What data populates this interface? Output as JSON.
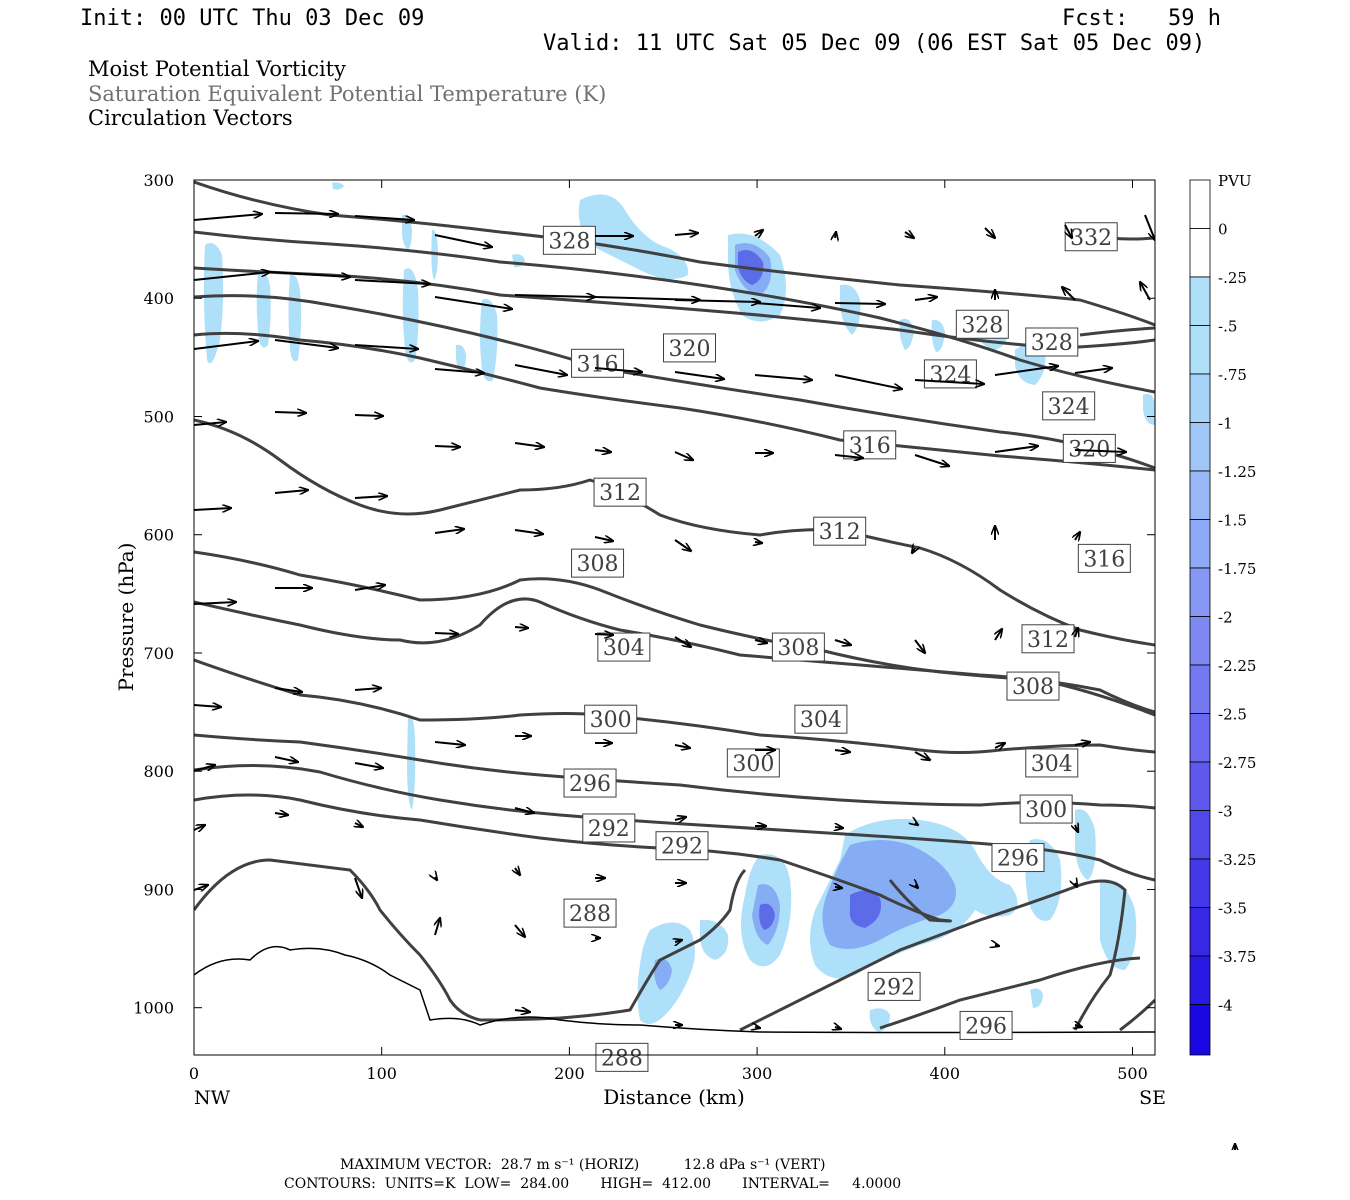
{
  "header": {
    "init": "Init: 00 UTC Thu 03 Dec 09",
    "fcst": "Fcst:   59 h",
    "valid": "Valid: 11 UTC Sat 05 Dec 09 (06 EST Sat 05 Dec 09)"
  },
  "legend_titles": {
    "field1": "Moist Potential Vorticity",
    "field2": "Saturation Equivalent Potential Temperature (K)",
    "field3": "Circulation Vectors"
  },
  "colors": {
    "field2_title": "#707070",
    "contour": "#404040",
    "shade_light": "#aee0fa",
    "shade_mid": "#86acf4",
    "shade_dark": "#5c6ce8"
  },
  "chart_data": {
    "type": "contour",
    "xlabel": "Distance (km)",
    "ylabel": "Pressure (hPa)",
    "xlim": [
      0,
      512
    ],
    "ylim": [
      300,
      1040
    ],
    "y_scale": "linear-inverted",
    "x_ticks": [
      0,
      100,
      200,
      300,
      400,
      500
    ],
    "y_ticks": [
      300,
      400,
      500,
      600,
      700,
      800,
      900,
      1000
    ],
    "x_end_labels": {
      "left": "NW",
      "right": "SE"
    },
    "contour_labels": [
      {
        "value": "328",
        "x": 200,
        "y": 351
      },
      {
        "value": "332",
        "x": 478,
        "y": 348
      },
      {
        "value": "320",
        "x": 264,
        "y": 442
      },
      {
        "value": "316",
        "x": 215,
        "y": 455
      },
      {
        "value": "328",
        "x": 420,
        "y": 422
      },
      {
        "value": "328",
        "x": 457,
        "y": 437
      },
      {
        "value": "324",
        "x": 403,
        "y": 464
      },
      {
        "value": "324",
        "x": 466,
        "y": 491
      },
      {
        "value": "316",
        "x": 360,
        "y": 524
      },
      {
        "value": "320",
        "x": 477,
        "y": 527
      },
      {
        "value": "312",
        "x": 227,
        "y": 564
      },
      {
        "value": "312",
        "x": 344,
        "y": 597
      },
      {
        "value": "308",
        "x": 215,
        "y": 624
      },
      {
        "value": "316",
        "x": 485,
        "y": 620
      },
      {
        "value": "304",
        "x": 229,
        "y": 695
      },
      {
        "value": "308",
        "x": 322,
        "y": 695
      },
      {
        "value": "312",
        "x": 455,
        "y": 688
      },
      {
        "value": "308",
        "x": 447,
        "y": 728
      },
      {
        "value": "300",
        "x": 222,
        "y": 756
      },
      {
        "value": "304",
        "x": 334,
        "y": 756
      },
      {
        "value": "304",
        "x": 457,
        "y": 793
      },
      {
        "value": "300",
        "x": 298,
        "y": 793
      },
      {
        "value": "296",
        "x": 211,
        "y": 810
      },
      {
        "value": "300",
        "x": 454,
        "y": 832
      },
      {
        "value": "292",
        "x": 221,
        "y": 848
      },
      {
        "value": "292",
        "x": 260,
        "y": 863
      },
      {
        "value": "296",
        "x": 439,
        "y": 873
      },
      {
        "value": "288",
        "x": 211,
        "y": 920
      },
      {
        "value": "292",
        "x": 373,
        "y": 982
      },
      {
        "value": "296",
        "x": 422,
        "y": 1015
      },
      {
        "value": "288",
        "x": 228,
        "y": 1042
      }
    ],
    "colorbar": {
      "units": "PVU",
      "labels": [
        "0",
        "-.25",
        "-.5",
        "-.75",
        "-1",
        "-1.25",
        "-1.5",
        "-1.75",
        "-2",
        "-2.25",
        "-2.5",
        "-2.75",
        "-3",
        "-3.25",
        "-3.5",
        "-3.75",
        "-4"
      ]
    },
    "contour_summary": {
      "units": "K",
      "low": 284.0,
      "high": 412.0,
      "interval": 4.0
    }
  },
  "footer": {
    "line1": "MAXIMUM VECTOR:  28.7 m s⁻¹ (HORIZ)          12.8 dPa s⁻¹ (VERT)",
    "line2": "CONTOURS:  UNITS=K  LOW=  284.00       HIGH=  412.00       INTERVAL=     4.0000"
  }
}
